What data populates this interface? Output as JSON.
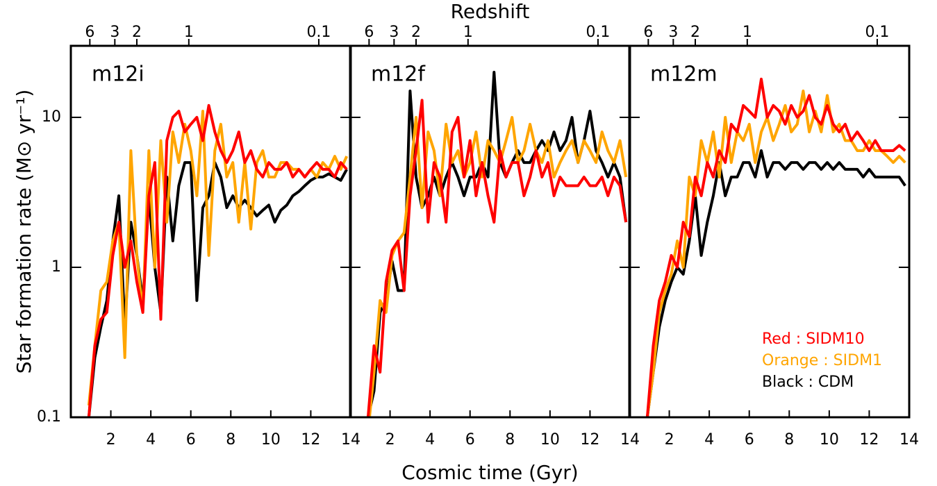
{
  "chart_data": [
    {
      "type": "line",
      "title": "m12i",
      "ylabel": "Star formation rate (M⊙ yr⁻¹)",
      "ytick_labels": true,
      "log_y": true,
      "x": [
        0.9,
        1.2,
        1.5,
        1.8,
        2.1,
        2.4,
        2.7,
        3.0,
        3.3,
        3.6,
        3.9,
        4.2,
        4.5,
        4.8,
        5.1,
        5.4,
        5.7,
        6.0,
        6.3,
        6.6,
        6.9,
        7.2,
        7.5,
        7.8,
        8.1,
        8.4,
        8.7,
        9.0,
        9.3,
        9.6,
        9.9,
        10.2,
        10.5,
        10.8,
        11.1,
        11.4,
        11.7,
        12.0,
        12.3,
        12.6,
        12.9,
        13.2,
        13.5,
        13.8
      ],
      "series": [
        {
          "color": "#ff0000",
          "values": [
            0.1,
            0.3,
            0.45,
            0.5,
            1.2,
            2,
            1,
            1.5,
            0.8,
            0.5,
            3,
            5,
            0.45,
            7,
            10,
            11,
            8,
            9,
            10,
            7,
            12,
            8,
            6,
            5,
            6,
            8,
            5,
            6,
            4.5,
            4,
            5,
            4.5,
            4.5,
            5,
            4,
            4.5,
            4,
            4.5,
            5,
            4.5,
            4.5,
            4,
            5,
            4.5
          ]
        },
        {
          "color": "#ffa500",
          "values": [
            0.12,
            0.3,
            0.7,
            0.8,
            1.5,
            2,
            0.25,
            6,
            1.2,
            0.5,
            6,
            1,
            7,
            2,
            8,
            5,
            9,
            6,
            3,
            11,
            1.2,
            6,
            9,
            4,
            5,
            2,
            5,
            1.8,
            5,
            6,
            4,
            4,
            5,
            5,
            4.5,
            4.5,
            4,
            4.5,
            4,
            5,
            4.5,
            5.5,
            4.5,
            5.5
          ]
        },
        {
          "color": "#000000",
          "values": [
            0.1,
            0.25,
            0.4,
            0.6,
            1.5,
            3,
            0.4,
            2,
            1.2,
            0.6,
            3,
            1,
            0.5,
            4,
            1.5,
            3.5,
            5,
            5,
            0.6,
            2.5,
            3,
            5,
            4,
            2.5,
            3,
            2.5,
            2.8,
            2.5,
            2.2,
            2.4,
            2.6,
            2,
            2.4,
            2.6,
            3,
            3.2,
            3.5,
            3.8,
            4,
            4,
            4.2,
            4,
            3.8,
            4.5
          ]
        }
      ],
      "xlim": [
        0,
        14
      ],
      "xticks": [
        2,
        4,
        6,
        8,
        10,
        12,
        14
      ],
      "ylim": [
        0.1,
        30
      ],
      "yticks": [
        0.1,
        1,
        10
      ],
      "x2ticks": [
        {
          "value": 0.95,
          "label": "6"
        },
        {
          "value": 2.2,
          "label": "3"
        },
        {
          "value": 3.3,
          "label": "2"
        },
        {
          "value": 5.9,
          "label": "1"
        },
        {
          "value": 12.4,
          "label": "0.1"
        }
      ]
    },
    {
      "type": "line",
      "title": "m12f",
      "xlabel": "Cosmic time (Gyr)",
      "x2label": "Redshift",
      "log_y": true,
      "x": [
        0.9,
        1.2,
        1.5,
        1.8,
        2.1,
        2.4,
        2.7,
        3.0,
        3.3,
        3.6,
        3.9,
        4.2,
        4.5,
        4.8,
        5.1,
        5.4,
        5.7,
        6.0,
        6.3,
        6.6,
        6.9,
        7.2,
        7.5,
        7.8,
        8.1,
        8.4,
        8.7,
        9.0,
        9.3,
        9.6,
        9.9,
        10.2,
        10.5,
        10.8,
        11.1,
        11.4,
        11.7,
        12.0,
        12.3,
        12.6,
        12.9,
        13.2,
        13.5,
        13.8
      ],
      "series": [
        {
          "color": "#ff0000",
          "values": [
            0.1,
            0.3,
            0.2,
            0.8,
            1.3,
            1.5,
            0.7,
            3,
            6,
            13,
            2,
            5,
            4,
            2,
            8,
            10,
            4,
            7,
            3,
            5,
            3,
            2,
            6,
            4,
            5,
            5,
            3,
            4,
            6,
            4,
            5,
            3,
            4,
            3.5,
            3.5,
            3.5,
            4,
            3.5,
            3.5,
            4,
            3,
            4,
            3.5,
            2
          ]
        },
        {
          "color": "#ffa500",
          "values": [
            0.08,
            0.2,
            0.6,
            0.5,
            1.2,
            1.5,
            1.7,
            4,
            10,
            2.5,
            8,
            6,
            3,
            9,
            5,
            6,
            4,
            5,
            8,
            4,
            7,
            6,
            5,
            7,
            10,
            5,
            6,
            9,
            6,
            5,
            7,
            4,
            5,
            6,
            7,
            5,
            7,
            6,
            5,
            8,
            6,
            5,
            7,
            4
          ]
        },
        {
          "color": "#000000",
          "values": [
            0.1,
            0.15,
            0.5,
            0.6,
            1.1,
            0.7,
            0.7,
            15,
            4,
            2.5,
            3,
            4,
            3,
            4,
            5,
            4,
            3,
            4,
            4,
            5,
            4,
            20,
            5,
            4,
            5,
            6,
            5,
            5,
            6,
            7,
            6,
            8,
            6,
            7,
            10,
            5,
            7,
            11,
            6,
            5,
            4,
            5,
            4,
            2
          ]
        }
      ],
      "xlim": [
        0,
        14
      ],
      "xticks": [
        2,
        4,
        6,
        8,
        10,
        12,
        14
      ],
      "ylim": [
        0.1,
        30
      ],
      "yticks": [
        0.1,
        1,
        10
      ],
      "x2ticks": [
        {
          "value": 0.95,
          "label": "6"
        },
        {
          "value": 2.2,
          "label": "3"
        },
        {
          "value": 3.3,
          "label": "2"
        },
        {
          "value": 5.9,
          "label": "1"
        },
        {
          "value": 12.4,
          "label": "0.1"
        }
      ]
    },
    {
      "type": "line",
      "title": "m12m",
      "legend": "lower right",
      "log_y": true,
      "x": [
        0.9,
        1.2,
        1.5,
        1.8,
        2.1,
        2.4,
        2.7,
        3.0,
        3.3,
        3.6,
        3.9,
        4.2,
        4.5,
        4.8,
        5.1,
        5.4,
        5.7,
        6.0,
        6.3,
        6.6,
        6.9,
        7.2,
        7.5,
        7.8,
        8.1,
        8.4,
        8.7,
        9.0,
        9.3,
        9.6,
        9.9,
        10.2,
        10.5,
        10.8,
        11.1,
        11.4,
        11.7,
        12.0,
        12.3,
        12.6,
        12.9,
        13.2,
        13.5,
        13.8
      ],
      "series": [
        {
          "name": "Red : SIDM10",
          "color": "#ff0000",
          "values": [
            0.1,
            0.3,
            0.6,
            0.8,
            1.2,
            1,
            2,
            1.6,
            4,
            3,
            5,
            4,
            6,
            5,
            9,
            8,
            12,
            11,
            10,
            18,
            10,
            12,
            11,
            9,
            12,
            10,
            11,
            14,
            10,
            9,
            12,
            9,
            8,
            9,
            7,
            8,
            7,
            6,
            7,
            6,
            6,
            6,
            6.5,
            6
          ]
        },
        {
          "name": "Orange : SIDM1",
          "color": "#ffa500",
          "values": [
            0.1,
            0.2,
            0.5,
            0.7,
            0.9,
            1.5,
            1,
            4,
            3,
            7,
            5,
            8,
            4,
            10,
            5,
            8,
            7,
            9,
            5,
            8,
            10,
            7,
            9,
            12,
            8,
            9,
            15,
            8,
            11,
            8,
            14,
            8,
            9,
            7,
            7,
            6,
            6,
            7,
            6,
            6,
            5.5,
            5,
            5.5,
            5
          ]
        },
        {
          "name": "Black : CDM",
          "color": "#000000",
          "values": [
            0.1,
            0.2,
            0.4,
            0.6,
            0.8,
            1,
            0.9,
            1.5,
            3,
            1.2,
            2,
            3,
            5,
            3,
            4,
            4,
            5,
            5,
            4,
            6,
            4,
            5,
            5,
            4.5,
            5,
            5,
            4.5,
            5,
            5,
            4.5,
            5,
            4.5,
            5,
            4.5,
            4.5,
            4.5,
            4,
            4.5,
            4,
            4,
            4,
            4,
            4,
            3.5
          ]
        }
      ],
      "xlim": [
        0,
        14
      ],
      "xticks": [
        2,
        4,
        6,
        8,
        10,
        12,
        14
      ],
      "ylim": [
        0.1,
        30
      ],
      "yticks": [
        0.1,
        1,
        10
      ],
      "x2ticks": [
        {
          "value": 0.95,
          "label": "6"
        },
        {
          "value": 2.2,
          "label": "3"
        },
        {
          "value": 3.3,
          "label": "2"
        },
        {
          "value": 5.9,
          "label": "1"
        },
        {
          "value": 12.4,
          "label": "0.1"
        }
      ]
    }
  ]
}
